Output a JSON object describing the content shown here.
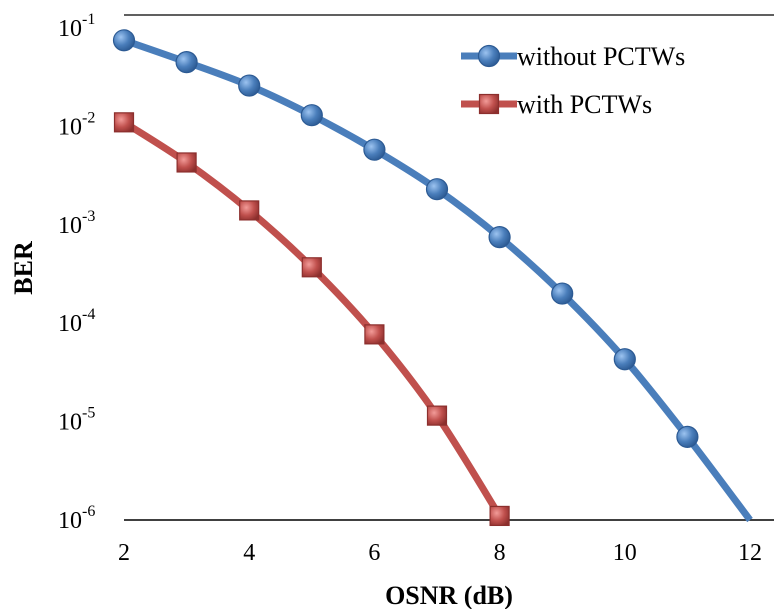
{
  "chart_data": {
    "type": "line",
    "xlabel": "OSNR (dB)",
    "ylabel": "BER",
    "xlim": [
      2,
      12.4
    ],
    "ylim_log10": [
      -6,
      -1
    ],
    "y_scale": "log",
    "x_ticks": [
      "2",
      "4",
      "6",
      "8",
      "10",
      "12"
    ],
    "x_tick_values": [
      2,
      4,
      6,
      8,
      10,
      12
    ],
    "y_ticks": [
      {
        "exp": -1,
        "base": "10",
        "sup": "-1"
      },
      {
        "exp": -2,
        "base": "10",
        "sup": "-2"
      },
      {
        "exp": -3,
        "base": "10",
        "sup": "-3"
      },
      {
        "exp": -4,
        "base": "10",
        "sup": "-4"
      },
      {
        "exp": -5,
        "base": "10",
        "sup": "-5"
      },
      {
        "exp": -6,
        "base": "10",
        "sup": "-6"
      }
    ],
    "legend_position": "top-right",
    "series": [
      {
        "name": "without PCTWs",
        "color": "#4a7ebb",
        "marker": "circle",
        "x": [
          2,
          3,
          4,
          5,
          6,
          7,
          8,
          9,
          10,
          11
        ],
        "y": [
          0.075,
          0.045,
          0.026,
          0.013,
          0.0058,
          0.0023,
          0.00075,
          0.0002,
          4.3e-05,
          7e-06
        ],
        "line_end": {
          "x": 12,
          "y": 1e-06
        }
      },
      {
        "name": "with PCTWs",
        "color": "#c0504d",
        "marker": "square",
        "x": [
          2,
          3,
          4,
          5,
          6,
          7,
          8
        ],
        "y": [
          0.011,
          0.0043,
          0.0014,
          0.00037,
          7.7e-05,
          1.15e-05,
          1.1e-06
        ]
      }
    ]
  }
}
